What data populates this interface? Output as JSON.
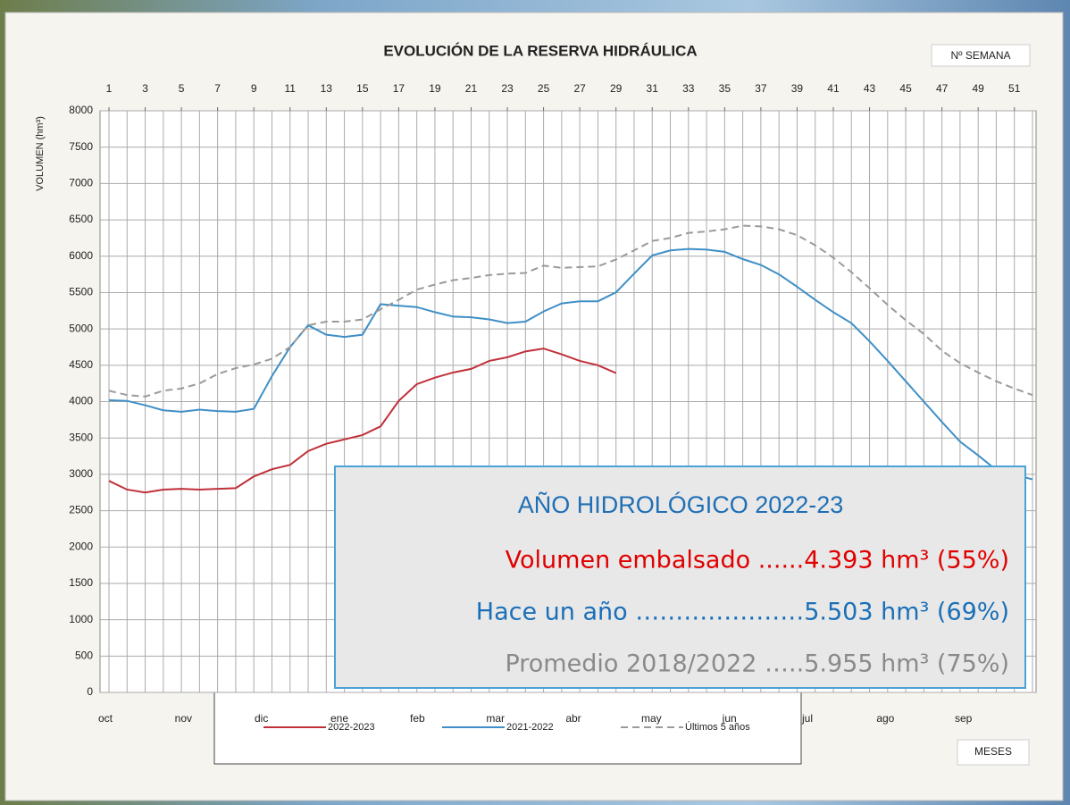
{
  "chart_data": {
    "type": "line",
    "title": "EVOLUCIÓN DE LA RESERVA HIDRÁULICA",
    "x_axis_label": "Nº SEMANA",
    "y_axis_label": "VOLUMEN (hm³)",
    "months_label": "MESES",
    "months": [
      "oct",
      "nov",
      "dic",
      "ene",
      "feb",
      "mar",
      "abr",
      "may",
      "jun",
      "jul",
      "ago",
      "sep"
    ],
    "x": [
      1,
      2,
      3,
      4,
      5,
      6,
      7,
      8,
      9,
      10,
      11,
      12,
      13,
      14,
      15,
      16,
      17,
      18,
      19,
      20,
      21,
      22,
      23,
      24,
      25,
      26,
      27,
      28,
      29,
      30,
      31,
      32,
      33,
      34,
      35,
      36,
      37,
      38,
      39,
      40,
      41,
      42,
      43,
      44,
      45,
      46,
      47,
      48,
      49,
      50,
      51,
      52
    ],
    "xlim": [
      1,
      52
    ],
    "xticks": [
      1,
      3,
      5,
      7,
      9,
      11,
      13,
      15,
      17,
      19,
      21,
      23,
      25,
      27,
      29,
      31,
      33,
      35,
      37,
      39,
      41,
      43,
      45,
      47,
      49,
      51
    ],
    "ylim": [
      0,
      8000
    ],
    "yticks": [
      0,
      500,
      1000,
      1500,
      2000,
      2500,
      3000,
      3500,
      4000,
      4500,
      5000,
      5500,
      6000,
      6500,
      7000,
      7500,
      8000
    ],
    "grid": true,
    "series": [
      {
        "name": "2022-2023",
        "color": "#c0303a",
        "linestyle": "solid",
        "values": [
          2910,
          2790,
          2750,
          2790,
          2800,
          2790,
          2800,
          2810,
          2970,
          3070,
          3130,
          3320,
          3420,
          3480,
          3540,
          3660,
          4010,
          4240,
          4330,
          4400,
          4450,
          4560,
          4610,
          4690,
          4730,
          4650,
          4560,
          4500,
          4393,
          null,
          null,
          null,
          null,
          null,
          null,
          null,
          null,
          null,
          null,
          null,
          null,
          null,
          null,
          null,
          null,
          null,
          null,
          null,
          null,
          null,
          null,
          null
        ]
      },
      {
        "name": "2021-2022",
        "color": "#3f8fc6",
        "linestyle": "solid",
        "values": [
          4020,
          4010,
          3950,
          3880,
          3860,
          3890,
          3870,
          3860,
          3900,
          4350,
          4750,
          5050,
          4920,
          4890,
          4920,
          5340,
          5320,
          5300,
          5230,
          5170,
          5160,
          5130,
          5080,
          5100,
          5240,
          5350,
          5380,
          5380,
          5503,
          5760,
          6010,
          6080,
          6100,
          6090,
          6060,
          5960,
          5880,
          5750,
          5580,
          5400,
          5230,
          5080,
          4830,
          4560,
          4280,
          4000,
          3720,
          3450,
          3260,
          3060,
          3000,
          2930
        ]
      },
      {
        "name": "Últimos 5 años",
        "color": "#9a9a9a",
        "linestyle": "dashed",
        "values": [
          4150,
          4090,
          4070,
          4150,
          4180,
          4250,
          4380,
          4460,
          4510,
          4590,
          4750,
          5050,
          5100,
          5100,
          5130,
          5270,
          5400,
          5540,
          5610,
          5670,
          5700,
          5740,
          5760,
          5770,
          5870,
          5840,
          5850,
          5860,
          5955,
          6080,
          6210,
          6250,
          6320,
          6340,
          6370,
          6420,
          6410,
          6370,
          6290,
          6150,
          5980,
          5780,
          5560,
          5330,
          5120,
          4930,
          4700,
          4530,
          4400,
          4280,
          4180,
          4090
        ]
      }
    ],
    "info_box": {
      "title": "AÑO HIDROLÓGICO 2022-23",
      "title_color": "#1f6fb5",
      "lines": [
        {
          "text": "Volumen embalsado ......4.393 hm³ (55%)",
          "color": "#e00000"
        },
        {
          "text": "Hace un año …………………5.503 hm³ (69%)",
          "color": "#1a6fb8"
        },
        {
          "text": "Promedio 2018/2022 …..5.955 hm³ (75%)",
          "color": "#8a8a8a"
        }
      ]
    }
  }
}
